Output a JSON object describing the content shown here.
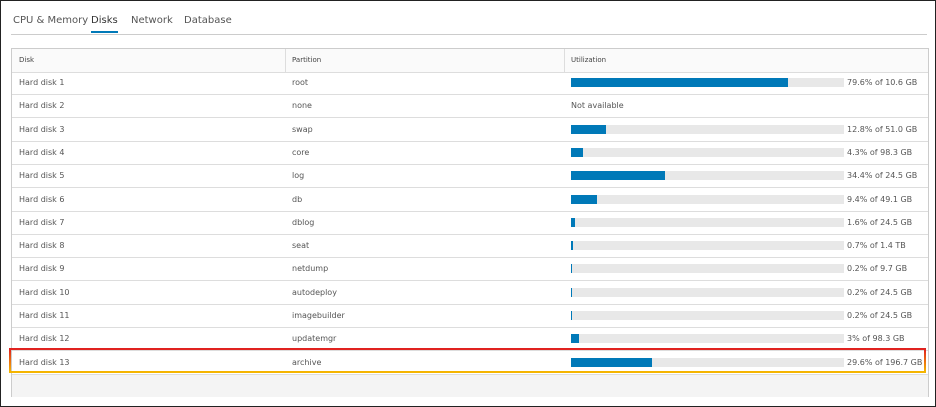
{
  "tabs": [
    "CPU & Memory",
    "Disks",
    "Network",
    "Database"
  ],
  "active_tab": 1,
  "table": {
    "headers": [
      "Disk",
      "Partition",
      "Utilization"
    ],
    "rows": [
      {
        "disk": "Hard disk 1",
        "partition": "root",
        "percent": 79.6,
        "label": "79.6% of 10.6 GB"
      },
      {
        "disk": "Hard disk 2",
        "partition": "none",
        "percent": null,
        "label": "Not available"
      },
      {
        "disk": "Hard disk 3",
        "partition": "swap",
        "percent": 12.8,
        "label": "12.8% of 51.0 GB"
      },
      {
        "disk": "Hard disk 4",
        "partition": "core",
        "percent": 4.3,
        "label": "4.3% of 98.3 GB"
      },
      {
        "disk": "Hard disk 5",
        "partition": "log",
        "percent": 34.4,
        "label": "34.4% of 24.5 GB"
      },
      {
        "disk": "Hard disk 6",
        "partition": "db",
        "percent": 9.4,
        "label": "9.4% of 49.1 GB"
      },
      {
        "disk": "Hard disk 7",
        "partition": "dblog",
        "percent": 1.6,
        "label": "1.6% of 24.5 GB"
      },
      {
        "disk": "Hard disk 8",
        "partition": "seat",
        "percent": 0.7,
        "label": "0.7% of 1.4 TB"
      },
      {
        "disk": "Hard disk 9",
        "partition": "netdump",
        "percent": 0.2,
        "label": "0.2% of 9.7 GB"
      },
      {
        "disk": "Hard disk 10",
        "partition": "autodeploy",
        "percent": 0.2,
        "label": "0.2% of 24.5 GB"
      },
      {
        "disk": "Hard disk 11",
        "partition": "imagebuilder",
        "percent": 0.2,
        "label": "0.2% of 24.5 GB"
      },
      {
        "disk": "Hard disk 12",
        "partition": "updatemgr",
        "percent": 3,
        "label": "3% of 98.3 GB"
      },
      {
        "disk": "Hard disk 13",
        "partition": "archive",
        "percent": 29.6,
        "label": "29.6% of 196.7 GB"
      }
    ],
    "highlighted_row": 12
  }
}
